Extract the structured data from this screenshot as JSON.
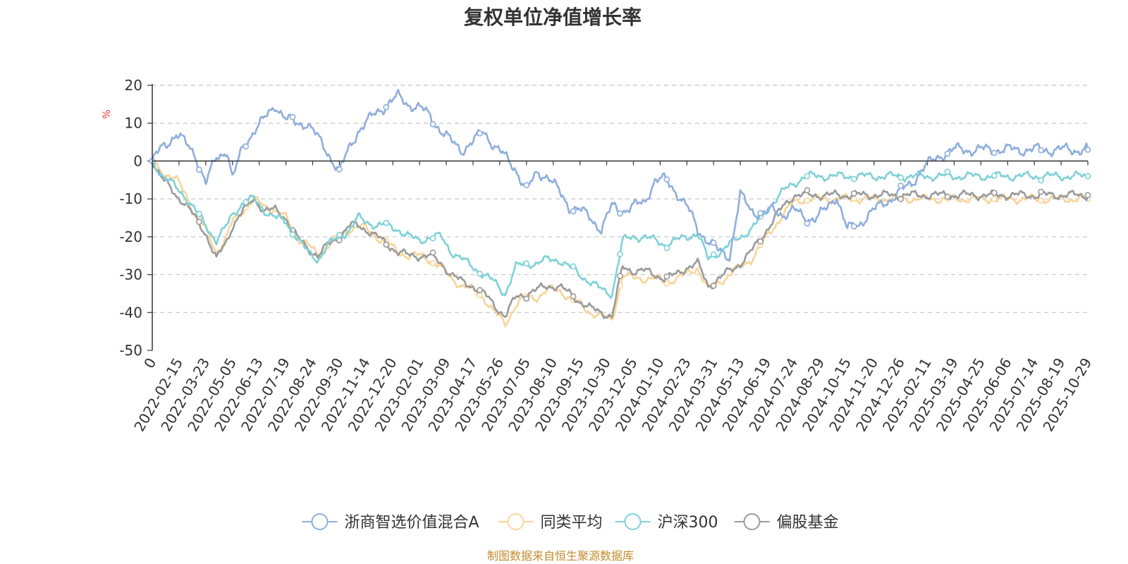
{
  "chart_data": {
    "type": "line",
    "title": "复权单位净值增长率",
    "ylabel": "%",
    "xlabel": "",
    "ylim": [
      -50,
      20
    ],
    "yticks": [
      20,
      10,
      0,
      -10,
      -20,
      -30,
      -40,
      -50
    ],
    "xtick_labels": [
      "0",
      "2022-02-15",
      "2022-03-23",
      "2022-05-05",
      "2022-06-13",
      "2022-07-19",
      "2022-08-24",
      "2022-09-30",
      "2022-11-14",
      "2022-12-20",
      "2023-02-01",
      "2023-03-09",
      "2023-04-17",
      "2023-05-26",
      "2023-07-05",
      "2023-08-10",
      "2023-09-15",
      "2023-10-30",
      "2023-12-05",
      "2024-01-10",
      "2024-02-23",
      "2024-03-31",
      "2024-05-13",
      "2024-06-19",
      "2024-07-24",
      "2024-08-29",
      "2024-10-15",
      "2024-11-20",
      "2024-12-26",
      "2025-02-11",
      "2025-03-19",
      "2025-04-25",
      "2025-06-06",
      "2025-07-14",
      "2025-08-19",
      "2025-10-29"
    ],
    "x_knots": [
      0,
      0.4,
      0.9,
      1.2,
      1.6,
      2.0,
      2.4,
      2.8,
      3.0,
      3.4,
      3.8,
      4.2,
      4.6,
      5.0,
      5.4,
      5.8,
      6.2,
      6.6,
      7.0,
      7.4,
      7.7,
      8.0,
      8.4,
      8.8,
      9.2,
      9.6,
      10.0,
      10.4,
      10.8,
      11.2,
      11.6,
      12.0,
      12.4,
      12.8,
      13.2,
      13.6,
      14.0,
      14.4,
      14.8,
      15.2,
      15.6,
      16.0,
      16.4,
      16.8,
      17.2,
      17.6,
      18.0,
      18.4,
      18.8,
      19.2,
      19.6,
      20.0,
      20.4,
      20.8,
      21.2,
      21.6,
      22.0,
      22.4,
      22.8,
      23.2,
      23.6,
      24.0,
      24.4,
      24.8,
      25.2,
      25.4,
      25.6,
      26.0,
      26.4,
      26.8,
      27.2,
      27.6,
      28.0,
      28.4,
      28.8,
      29.2,
      29.6,
      30.0,
      30.4,
      30.8,
      31.2,
      31.6,
      32.0,
      32.4,
      32.8,
      33.2,
      33.6,
      34.0,
      34.4,
      34.8
    ],
    "series": [
      {
        "name": "浙商智选价值混合A",
        "color": "#8eaedc",
        "values": [
          0,
          4,
          7,
          5,
          2,
          -6,
          1,
          3,
          -5,
          4,
          8,
          11,
          15,
          11,
          10,
          10,
          6,
          2,
          -3,
          4,
          8,
          10,
          13,
          15,
          17,
          15,
          14,
          12,
          8,
          5,
          3,
          5,
          8,
          4,
          1,
          -2,
          -8,
          -3,
          -4,
          -8,
          -12,
          -13,
          -15,
          -18,
          -12,
          -13,
          -12,
          -11,
          -5,
          -5,
          -8,
          -12,
          -18,
          -21,
          -24,
          -25,
          -9,
          -13,
          -14,
          -13,
          -14,
          -13,
          -15,
          -15,
          -13,
          -11,
          -9,
          -18,
          -17,
          -14,
          -12,
          -10,
          -8,
          -6,
          -2,
          0,
          2,
          3,
          3,
          3,
          3,
          3,
          3,
          3,
          3,
          3,
          3,
          3,
          3,
          3
        ]
      },
      {
        "name": "同类平均",
        "color": "#f8d59a",
        "values": [
          0,
          -3,
          -5,
          -8,
          -14,
          -18,
          -24,
          -20,
          -16,
          -13,
          -10,
          -12,
          -13,
          -15,
          -20,
          -22,
          -25,
          -22,
          -20,
          -18,
          -17,
          -18,
          -20,
          -22,
          -24,
          -25,
          -25,
          -26,
          -28,
          -31,
          -33,
          -34,
          -36,
          -40,
          -43,
          -38,
          -36,
          -36,
          -34,
          -34,
          -36,
          -38,
          -40,
          -41,
          -42,
          -30,
          -31,
          -31,
          -31,
          -32,
          -31,
          -30,
          -28,
          -34,
          -32,
          -30,
          -28,
          -26,
          -22,
          -18,
          -14,
          -11,
          -10,
          -10,
          -10,
          -10,
          -10,
          -10,
          -10,
          -10,
          -10,
          -10,
          -10,
          -10,
          -10,
          -10,
          -10,
          -10,
          -10,
          -10,
          -10,
          -10,
          -10,
          -10,
          -10,
          -10,
          -10,
          -10,
          -10,
          -10
        ]
      },
      {
        "name": "沪深300",
        "color": "#7fd1d7",
        "values": [
          0,
          -4,
          -7,
          -9,
          -13,
          -17,
          -21,
          -17,
          -14,
          -11,
          -10,
          -13,
          -15,
          -16,
          -20,
          -24,
          -26,
          -22,
          -20,
          -18,
          -15,
          -16,
          -17,
          -17,
          -18,
          -20,
          -21,
          -20,
          -20,
          -24,
          -26,
          -28,
          -30,
          -32,
          -35,
          -28,
          -27,
          -27,
          -26,
          -26,
          -28,
          -30,
          -32,
          -34,
          -35,
          -21,
          -20,
          -20,
          -21,
          -22,
          -21,
          -20,
          -19,
          -26,
          -24,
          -22,
          -20,
          -18,
          -15,
          -11,
          -8,
          -6,
          -4,
          -4,
          -4,
          -4,
          -4,
          -4,
          -4,
          -4,
          -4,
          -4,
          -4,
          -4,
          -4,
          -4,
          -4,
          -4,
          -4,
          -4,
          -4,
          -4,
          -4,
          -4,
          -4,
          -4,
          -4,
          -4,
          -4,
          -4
        ]
      },
      {
        "name": "偏股基金",
        "color": "#9a9a9a",
        "values": [
          0,
          -5,
          -9,
          -11,
          -15,
          -19,
          -26,
          -21,
          -17,
          -13,
          -10,
          -13,
          -13,
          -15,
          -20,
          -23,
          -25,
          -22,
          -20,
          -17,
          -17,
          -18,
          -20,
          -22,
          -24,
          -25,
          -25,
          -25,
          -27,
          -30,
          -32,
          -33,
          -35,
          -38,
          -41,
          -36,
          -35,
          -34,
          -33,
          -33,
          -35,
          -37,
          -39,
          -40,
          -41,
          -28,
          -29,
          -29,
          -30,
          -31,
          -30,
          -28,
          -27,
          -33,
          -31,
          -29,
          -27,
          -24,
          -20,
          -16,
          -12,
          -9,
          -9,
          -9,
          -9,
          -9,
          -9,
          -9,
          -9,
          -9,
          -9,
          -9,
          -9,
          -9,
          -9,
          -9,
          -9,
          -9,
          -9,
          -9,
          -9,
          -9,
          -9,
          -9,
          -9,
          -9,
          -9,
          -9,
          -9,
          -9
        ]
      }
    ],
    "legend_position": "bottom-center",
    "grid": true
  },
  "footer": {
    "source_text": "制图数据来自恒生聚源数据库"
  }
}
